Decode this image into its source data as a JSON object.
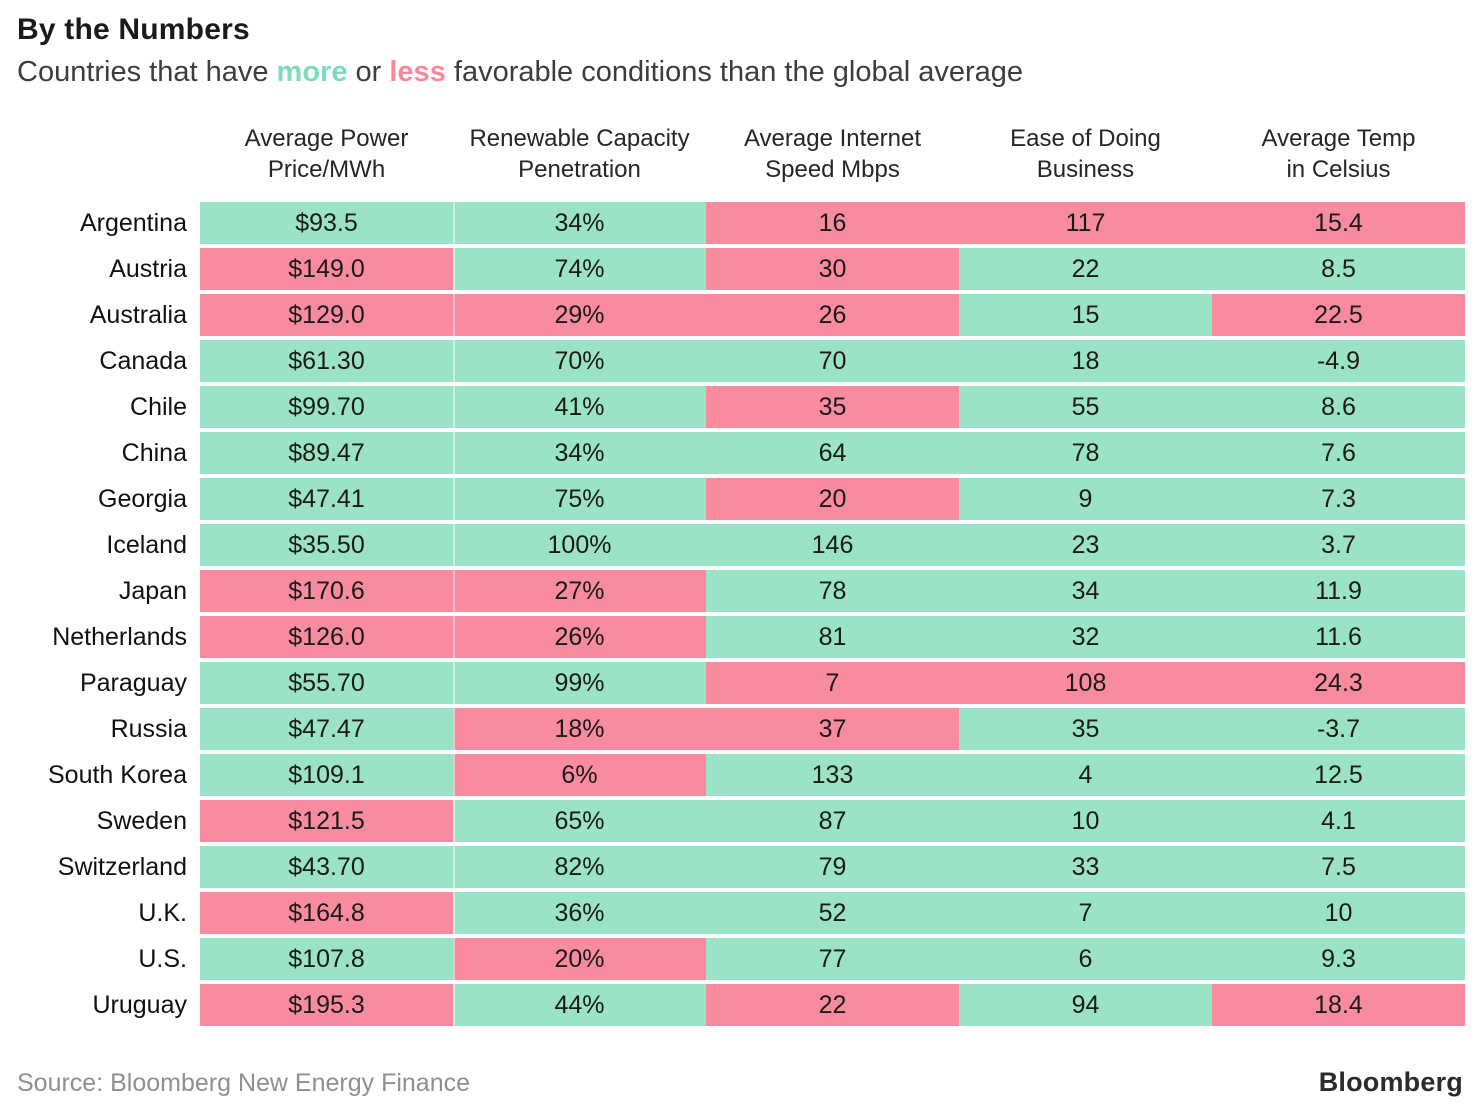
{
  "chart_data": {
    "type": "table",
    "title": "By the Numbers",
    "subtitle_parts": {
      "before": "Countries that have ",
      "more": "more",
      "mid": " or ",
      "less": "less",
      "after": " favorable conditions than the global average"
    },
    "legend_note": "green cell = more favorable than global average, pink cell = less favorable",
    "columns": [
      {
        "id": "power-price",
        "line1": "Average Power",
        "line2": "Price/MWh"
      },
      {
        "id": "renewable",
        "line1": "Renewable Capacity",
        "line2": "Penetration"
      },
      {
        "id": "internet",
        "line1": "Average Internet",
        "line2": "Speed Mbps"
      },
      {
        "id": "business",
        "line1": "Ease of Doing",
        "line2": "Business"
      },
      {
        "id": "temp",
        "line1": "Average Temp",
        "line2": "in Celsius"
      }
    ],
    "rows": [
      {
        "country": "Argentina",
        "values": [
          "$93.5",
          "34%",
          "16",
          "117",
          "15.4"
        ],
        "states": [
          "more",
          "more",
          "less",
          "less",
          "less"
        ]
      },
      {
        "country": "Austria",
        "values": [
          "$149.0",
          "74%",
          "30",
          "22",
          "8.5"
        ],
        "states": [
          "less",
          "more",
          "less",
          "more",
          "more"
        ]
      },
      {
        "country": "Australia",
        "values": [
          "$129.0",
          "29%",
          "26",
          "15",
          "22.5"
        ],
        "states": [
          "less",
          "less",
          "less",
          "more",
          "less"
        ]
      },
      {
        "country": "Canada",
        "values": [
          "$61.30",
          "70%",
          "70",
          "18",
          "-4.9"
        ],
        "states": [
          "more",
          "more",
          "more",
          "more",
          "more"
        ]
      },
      {
        "country": "Chile",
        "values": [
          "$99.70",
          "41%",
          "35",
          "55",
          "8.6"
        ],
        "states": [
          "more",
          "more",
          "less",
          "more",
          "more"
        ]
      },
      {
        "country": "China",
        "values": [
          "$89.47",
          "34%",
          "64",
          "78",
          "7.6"
        ],
        "states": [
          "more",
          "more",
          "more",
          "more",
          "more"
        ]
      },
      {
        "country": "Georgia",
        "values": [
          "$47.41",
          "75%",
          "20",
          "9",
          "7.3"
        ],
        "states": [
          "more",
          "more",
          "less",
          "more",
          "more"
        ]
      },
      {
        "country": "Iceland",
        "values": [
          "$35.50",
          "100%",
          "146",
          "23",
          "3.7"
        ],
        "states": [
          "more",
          "more",
          "more",
          "more",
          "more"
        ]
      },
      {
        "country": "Japan",
        "values": [
          "$170.6",
          "27%",
          "78",
          "34",
          "11.9"
        ],
        "states": [
          "less",
          "less",
          "more",
          "more",
          "more"
        ]
      },
      {
        "country": "Netherlands",
        "values": [
          "$126.0",
          "26%",
          "81",
          "32",
          "11.6"
        ],
        "states": [
          "less",
          "less",
          "more",
          "more",
          "more"
        ]
      },
      {
        "country": "Paraguay",
        "values": [
          "$55.70",
          "99%",
          "7",
          "108",
          "24.3"
        ],
        "states": [
          "more",
          "more",
          "less",
          "less",
          "less"
        ]
      },
      {
        "country": "Russia",
        "values": [
          "$47.47",
          "18%",
          "37",
          "35",
          "-3.7"
        ],
        "states": [
          "more",
          "less",
          "less",
          "more",
          "more"
        ]
      },
      {
        "country": "South Korea",
        "values": [
          "$109.1",
          "6%",
          "133",
          "4",
          "12.5"
        ],
        "states": [
          "more",
          "less",
          "more",
          "more",
          "more"
        ]
      },
      {
        "country": "Sweden",
        "values": [
          "$121.5",
          "65%",
          "87",
          "10",
          "4.1"
        ],
        "states": [
          "less",
          "more",
          "more",
          "more",
          "more"
        ]
      },
      {
        "country": "Switzerland",
        "values": [
          "$43.70",
          "82%",
          "79",
          "33",
          "7.5"
        ],
        "states": [
          "more",
          "more",
          "more",
          "more",
          "more"
        ]
      },
      {
        "country": "U.K.",
        "values": [
          "$164.8",
          "36%",
          "52",
          "7",
          "10"
        ],
        "states": [
          "less",
          "more",
          "more",
          "more",
          "more"
        ]
      },
      {
        "country": "U.S.",
        "values": [
          "$107.8",
          "20%",
          "77",
          "6",
          "9.3"
        ],
        "states": [
          "more",
          "less",
          "more",
          "more",
          "more"
        ]
      },
      {
        "country": "Uruguay",
        "values": [
          "$195.3",
          "44%",
          "22",
          "94",
          "18.4"
        ],
        "states": [
          "less",
          "more",
          "less",
          "more",
          "less"
        ]
      }
    ]
  },
  "colors": {
    "more_bg": "#9BE3C6",
    "less_bg": "#F88C9E",
    "more_text": "#7EDCB9",
    "less_text": "#F8899D"
  },
  "footer": {
    "source": "Source: Bloomberg New Energy Finance",
    "logo": "Bloomberg"
  }
}
